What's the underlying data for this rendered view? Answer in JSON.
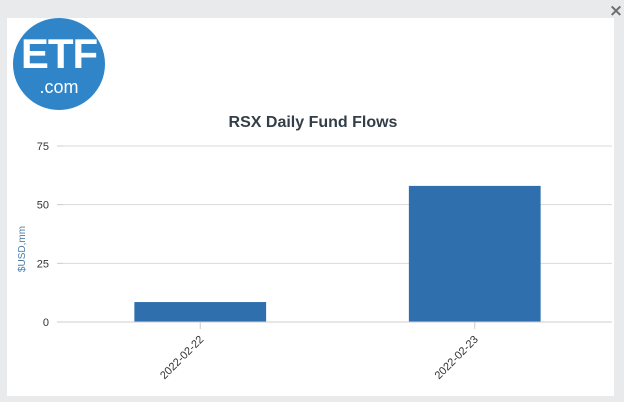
{
  "close_label": "×",
  "logo": {
    "main": "ETF",
    "sub": ".com"
  },
  "colors": {
    "bar": "#2f6fae",
    "logo": "#2f85c8"
  },
  "chart_data": {
    "type": "bar",
    "title": "RSX Daily Fund Flows",
    "xlabel": "",
    "ylabel": "$USD,mm",
    "categories": [
      "2022-02-22",
      "2022-02-23"
    ],
    "values": [
      8.5,
      58
    ],
    "ylim": [
      0,
      75
    ],
    "yticks": [
      0,
      25,
      50,
      75
    ],
    "grid": true,
    "legend": "none"
  }
}
